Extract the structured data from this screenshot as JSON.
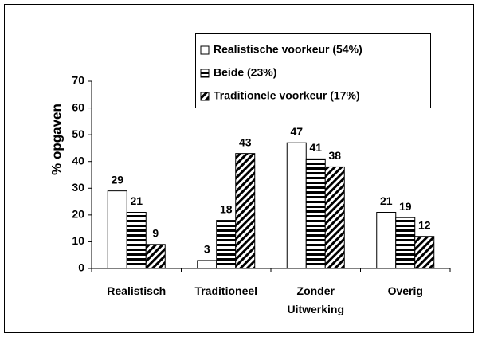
{
  "chart_data": {
    "type": "bar",
    "y_label": "% opgaven",
    "categories": [
      "Realistisch",
      "Traditioneel",
      "Zonder Uitwerking",
      "Overig"
    ],
    "series": [
      {
        "name": "Realistische voorkeur (54%)",
        "color": "#ffffff",
        "pattern": "none",
        "values": [
          29,
          3,
          47,
          21
        ]
      },
      {
        "name": "Beide (23%)",
        "color": "#000000",
        "pattern": "horizontal",
        "values": [
          21,
          18,
          41,
          19
        ]
      },
      {
        "name": "Traditionele voorkeur (17%)",
        "color": "#000000",
        "pattern": "diagonal",
        "values": [
          9,
          43,
          38,
          12
        ]
      }
    ],
    "ylim": [
      0,
      70
    ],
    "yticks": [
      0,
      10,
      20,
      30,
      40,
      50,
      60,
      70
    ],
    "grid": false,
    "legend": "top-right"
  }
}
